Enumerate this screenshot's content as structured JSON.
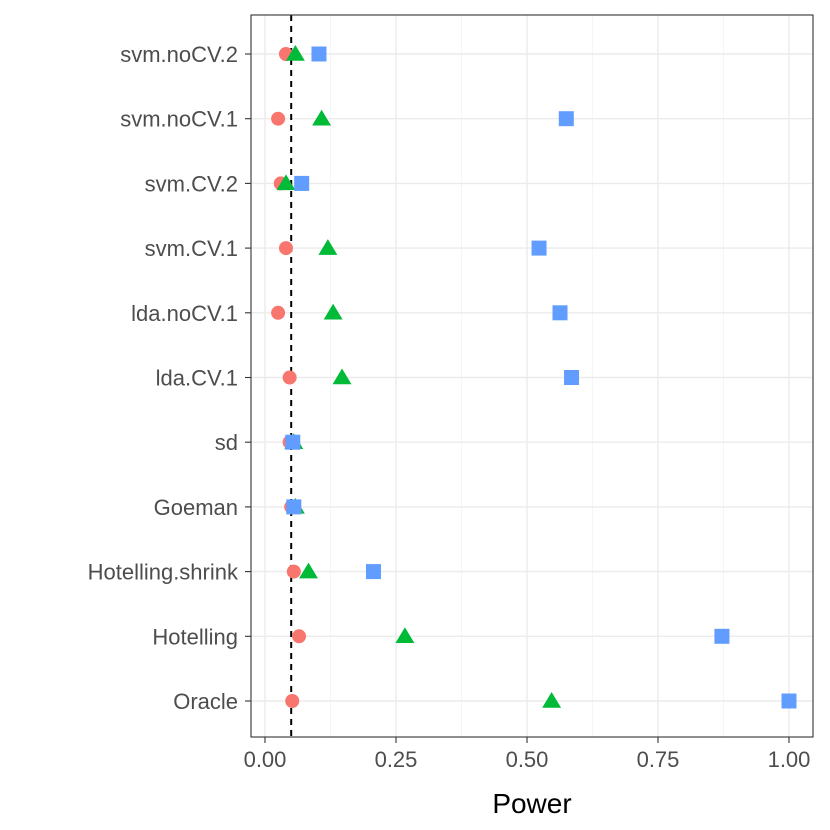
{
  "chart_data": {
    "type": "scatter",
    "title": "",
    "xlabel": "Power",
    "ylabel": "",
    "xlim": [
      -0.025,
      1.05
    ],
    "x_ticks": [
      0,
      0.25,
      0.5,
      0.75,
      1
    ],
    "x_tick_labels": [
      "0.00",
      "0.25",
      "0.50",
      "0.75",
      "1.00"
    ],
    "categories": [
      "svm.noCV.2",
      "svm.noCV.1",
      "svm.CV.2",
      "svm.CV.1",
      "lda.noCV.1",
      "lda.CV.1",
      "sd",
      "Goeman",
      "Hotelling.shrink",
      "Hotelling",
      "Oracle"
    ],
    "reference_line": {
      "x": 0.05,
      "style": "dashed"
    },
    "grid": true,
    "legend": "none",
    "series": [
      {
        "name": "series-1",
        "shape": "circle",
        "color": "#F8766D",
        "values": [
          0.04,
          0.025,
          0.03,
          0.04,
          0.025,
          0.047,
          0.047,
          0.05,
          0.055,
          0.065,
          0.052
        ]
      },
      {
        "name": "series-2",
        "shape": "triangle",
        "color": "#00BA38",
        "values": [
          0.058,
          0.108,
          0.04,
          0.12,
          0.13,
          0.147,
          0.055,
          0.058,
          0.083,
          0.267,
          0.547
        ]
      },
      {
        "name": "series-3",
        "shape": "square",
        "color": "#619CFF",
        "values": [
          0.103,
          0.575,
          0.07,
          0.523,
          0.563,
          0.585,
          0.053,
          0.055,
          0.207,
          0.872,
          1.0
        ]
      }
    ]
  }
}
